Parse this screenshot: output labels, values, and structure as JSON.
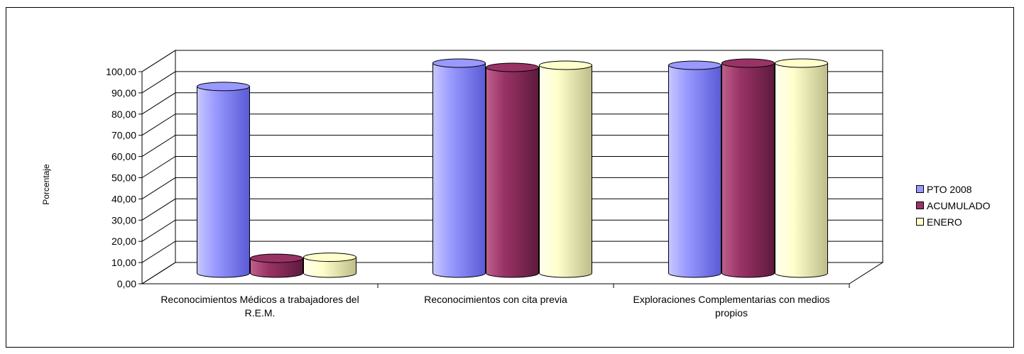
{
  "chart_data": {
    "type": "bar",
    "categories": [
      [
        "Reconocimientos Médicos a trabajadores del",
        "R.E.M."
      ],
      [
        "Reconocimientos con cita previa"
      ],
      [
        "Exploraciones Complementarias con medios",
        "propios"
      ]
    ],
    "series": [
      {
        "name": "PTO 2008",
        "values": [
          88,
          99,
          98
        ]
      },
      {
        "name": "ACUMULADO",
        "values": [
          7,
          97,
          99
        ]
      },
      {
        "name": "ENERO",
        "values": [
          7.5,
          98,
          99
        ]
      }
    ],
    "ylabel": "Porcentaje",
    "ylim": [
      0,
      100
    ],
    "yticks": [
      "0,00",
      "10,00",
      "20,00",
      "30,00",
      "40,00",
      "50,00",
      "60,00",
      "70,00",
      "80,00",
      "90,00",
      "100,00"
    ],
    "grid": true,
    "legend_position": "right"
  },
  "colors": {
    "series": [
      "#9999ff",
      "#993366",
      "#ffffcc"
    ],
    "series_dark": [
      "#5a5ad6",
      "#5e1a3d",
      "#bdbd8a"
    ],
    "series_light": [
      "#c8c8ff",
      "#c0608c",
      "#ffffee"
    ]
  }
}
